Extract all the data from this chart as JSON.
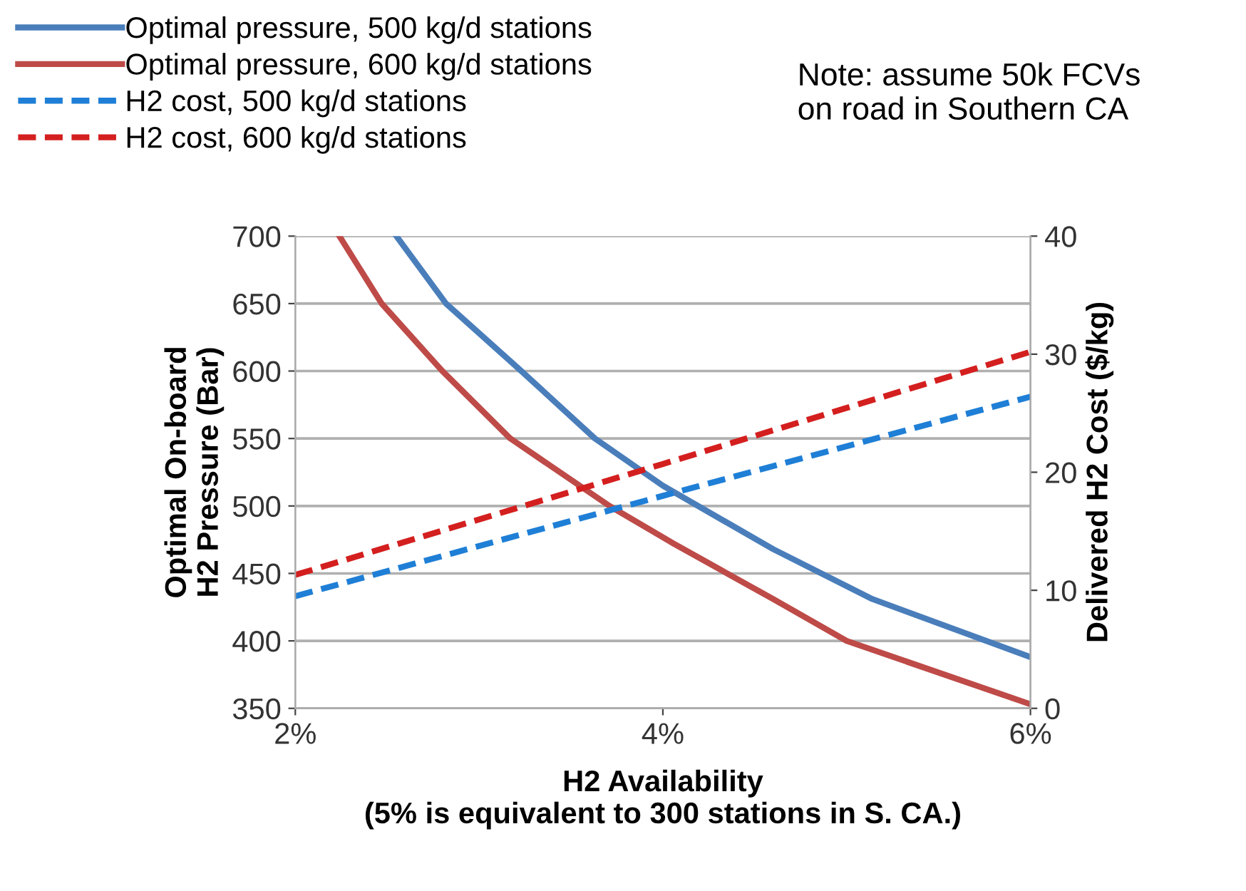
{
  "chart_data": {
    "type": "line",
    "xlabel": "H2 Availability\n(5% is equivalent to 300 stations in S. CA.)",
    "ylabel": "Optimal On-board\nH2 Pressure (Bar)",
    "y2label": "Delivered H2 Cost ($/kg)",
    "annotations": [
      "Note: assume 50k FCVs\non road in Southern CA"
    ],
    "xlim": [
      2,
      6
    ],
    "xticks": [
      {
        "value": 2,
        "label": "2%"
      },
      {
        "value": 4,
        "label": "4%"
      },
      {
        "value": 6,
        "label": "6%"
      }
    ],
    "ylim": [
      350,
      700
    ],
    "yticks": [
      350,
      400,
      450,
      500,
      550,
      600,
      650,
      700
    ],
    "y2lim": [
      0,
      40
    ],
    "y2ticks": [
      0,
      10,
      20,
      30,
      40
    ],
    "grid": "y",
    "legend": "top left",
    "marker": "none",
    "series": [
      {
        "name": "Optimal pressure, 500 kg/d stations",
        "color": "#4a7ebb",
        "line_style": "solid",
        "x": [
          2.55,
          2.82,
          3.23,
          3.63,
          4.0,
          4.6,
          5.14,
          6.0
        ],
        "values": [
          700,
          650,
          600,
          550,
          515,
          468,
          431,
          388
        ]
      },
      {
        "name": "Optimal pressure, 600 kg/d stations",
        "color": "#be4b48",
        "line_style": "solid",
        "x": [
          2.24,
          2.47,
          2.8,
          3.17,
          3.71,
          4.06,
          4.6,
          5.0,
          6.0
        ],
        "values": [
          700,
          650,
          600,
          550,
          500,
          472,
          431,
          400,
          353
        ]
      },
      {
        "name": "H2 cost, 500 kg/d stations",
        "color": "#1f7fd6",
        "line_style": "dashed",
        "axis": "y2",
        "x": [
          2,
          4,
          6
        ],
        "values": [
          9.5,
          18.0,
          26.4
        ]
      },
      {
        "name": "H2 cost, 600 kg/d stations",
        "color": "#d41f1f",
        "line_style": "dashed",
        "axis": "y2",
        "x": [
          2,
          4,
          6
        ],
        "values": [
          11.3,
          20.7,
          30.2
        ]
      }
    ]
  }
}
